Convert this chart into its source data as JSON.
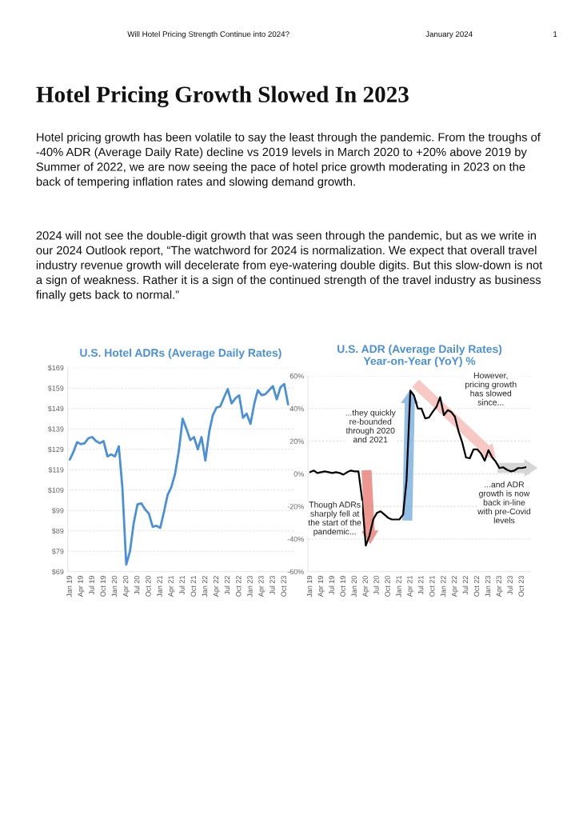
{
  "chart_data": [
    {
      "type": "line",
      "title": "U.S. Hotel ADRs (Average Daily Rates)",
      "annotations": [
        "Will Hotel Pricing Strength Continue into 2024?",
        "January 2024",
        "1",
        "Hotel Pricing Growth Slowed In 2023",
        "Hotel pricing growth has been volatile to say the least through the pandemic. From the troughs of -40% ADR (Average Daily Rate) decline vs 2019 levels in March 2020 to +20% above 2019 by Summer of 2022, we are now seeing the pace of hotel price growth moderating in 2023 on the back of tempering inflation rates and slowing demand growth.",
        "2024 will not see the double-digit growth that was seen through the pandemic, but as we write in our 2024 Outlook report, “The watchword for 2024 is normalization. We expect that overall travel industry revenue growth will decelerate from eye-watering double digits. But this slow-down is not a sign of weakness. Rather it is a sign of the continued strength of the travel industry as business finally gets back to normal.”"
      ],
      "x": [
        "2019-01",
        "2019-02",
        "2019-03",
        "2019-04",
        "2019-05",
        "2019-06",
        "2019-07",
        "2019-08",
        "2019-09",
        "2019-10",
        "2019-11",
        "2019-12",
        "2020-01",
        "2020-02",
        "2020-03",
        "2020-04",
        "2020-05",
        "2020-06",
        "2020-07",
        "2020-08",
        "2020-09",
        "2020-10",
        "2020-11",
        "2020-12",
        "2021-01",
        "2021-02",
        "2021-03",
        "2021-04",
        "2021-05",
        "2021-06",
        "2021-07",
        "2021-08",
        "2021-09",
        "2021-10",
        "2021-11",
        "2021-12",
        "2022-01",
        "2022-02",
        "2022-03",
        "2022-04",
        "2022-05",
        "2022-06",
        "2022-07",
        "2022-08",
        "2022-09",
        "2022-10",
        "2022-11",
        "2022-12",
        "2023-01",
        "2023-02",
        "2023-03",
        "2023-04",
        "2023-05",
        "2023-06",
        "2023-07",
        "2023-08",
        "2023-09",
        "2023-10",
        "2023-11"
      ],
      "series": [
        {
          "color": "#4a90d9",
          "values": [
            124,
            128,
            132.5,
            131.5,
            132,
            134.5,
            135,
            133,
            132,
            133,
            125.5,
            126.5,
            125.5,
            130.5,
            110,
            72.5,
            79,
            93,
            102,
            102.5,
            99.5,
            97.5,
            91,
            91.5,
            90.5,
            98.5,
            106.5,
            110.5,
            117,
            128.5,
            144,
            139,
            133.5,
            135,
            129,
            135,
            123.5,
            137.5,
            145.5,
            149.5,
            150,
            154.5,
            158.5,
            151.5,
            154,
            155.5,
            144.5,
            146.5,
            141.5,
            151.5,
            158,
            155.5,
            156,
            158,
            160,
            153.5,
            159.5,
            161,
            151
          ]
        }
      ],
      "xlim": [
        "2018-12-15",
        "2023-12-15"
      ],
      "xticks": [
        {
          "value": "2019-01",
          "label": "Jan 19"
        },
        {
          "value": "2019-04",
          "label": "Apr 19"
        },
        {
          "value": "2019-07",
          "label": "Jul 19"
        },
        {
          "value": "2019-10",
          "label": "Oct 19"
        },
        {
          "value": "2020-01",
          "label": "Jan 20"
        },
        {
          "value": "2020-04",
          "label": "Apr 20"
        },
        {
          "value": "2020-07",
          "label": "Jul 20"
        },
        {
          "value": "2020-10",
          "label": "Oct 20"
        },
        {
          "value": "2021-01",
          "label": "Jan 21"
        },
        {
          "value": "2021-04",
          "label": "Apr 21"
        },
        {
          "value": "2021-07",
          "label": "Jul 21"
        },
        {
          "value": "2021-10",
          "label": "Oct 21"
        },
        {
          "value": "2022-01",
          "label": "Jan 22"
        },
        {
          "value": "2022-04",
          "label": "Apr 22"
        },
        {
          "value": "2022-07",
          "label": "Jul 22"
        },
        {
          "value": "2022-10",
          "label": "Oct 22"
        },
        {
          "value": "2023-01",
          "label": "Jan 23"
        },
        {
          "value": "2023-04",
          "label": "Apr 23"
        },
        {
          "value": "2023-07",
          "label": "Jul 23"
        },
        {
          "value": "2023-10",
          "label": "Oct 23"
        }
      ],
      "ylim": [
        69,
        169
      ],
      "yticks": [
        {
          "value": 69,
          "label": "$69"
        },
        {
          "value": 79,
          "label": "$79"
        },
        {
          "value": 89,
          "label": "$89"
        },
        {
          "value": 99,
          "label": "$99"
        },
        {
          "value": 109,
          "label": "$109"
        },
        {
          "value": 119,
          "label": "$119"
        },
        {
          "value": 129,
          "label": "$129"
        },
        {
          "value": 139,
          "label": "$139"
        },
        {
          "value": 149,
          "label": "$149"
        },
        {
          "value": 159,
          "label": "$159"
        },
        {
          "value": 169,
          "label": "$169"
        }
      ],
      "grid": "y",
      "legend": false,
      "marker": "none",
      "line_style": "solid"
    },
    {
      "type": "line",
      "title": "U.S. ADR (Average Daily Rates) Year-on-Year (YoY) %",
      "annotations": [
        "Though ADRs sharply fell at the start of the pandemic...",
        "...they quickly re-bounded through 2020 and 2021",
        "However, pricing growth has slowed since...",
        "...and ADR growth is now back in-line with pre-Covid levels"
      ],
      "x": [
        "2019-01",
        "2019-02",
        "2019-03",
        "2019-04",
        "2019-05",
        "2019-06",
        "2019-07",
        "2019-08",
        "2019-09",
        "2019-10",
        "2019-11",
        "2019-12",
        "2020-01",
        "2020-02",
        "2020-03",
        "2020-04",
        "2020-05",
        "2020-06",
        "2020-07",
        "2020-08",
        "2020-09",
        "2020-10",
        "2020-11",
        "2020-12",
        "2021-01",
        "2021-02",
        "2021-03",
        "2021-04",
        "2021-05",
        "2021-06",
        "2021-07",
        "2021-08",
        "2021-09",
        "2021-10",
        "2021-11",
        "2021-12",
        "2022-01",
        "2022-02",
        "2022-03",
        "2022-04",
        "2022-05",
        "2022-06",
        "2022-07",
        "2022-08",
        "2022-09",
        "2022-10",
        "2022-11",
        "2022-12",
        "2023-01",
        "2023-02",
        "2023-03",
        "2023-04",
        "2023-05",
        "2023-06",
        "2023-07",
        "2023-08",
        "2023-09",
        "2023-10",
        "2023-11"
      ],
      "series": [
        {
          "color": "#000000",
          "values": [
            1,
            2,
            0.5,
            1,
            1.5,
            1,
            0.5,
            1,
            0.5,
            -0.5,
            1,
            2,
            1.5,
            1.5,
            -15,
            -44,
            -38,
            -28,
            -24,
            -23,
            -25,
            -27,
            -28,
            -28,
            -28,
            -25,
            -4,
            51,
            48,
            40,
            40,
            34,
            34.5,
            38,
            41,
            47,
            36,
            39,
            38,
            35,
            26,
            19,
            10,
            9.5,
            15,
            15,
            12.5,
            8,
            14.5,
            10,
            7.5,
            3.5,
            4,
            2.5,
            1.5,
            2,
            3.5,
            3.5,
            4
          ]
        }
      ],
      "xlim": [
        "2018-12-15",
        "2023-12-15"
      ],
      "xticks": [
        {
          "value": "2019-01",
          "label": "Jan 19"
        },
        {
          "value": "2019-04",
          "label": "Apr 19"
        },
        {
          "value": "2019-07",
          "label": "Jul 19"
        },
        {
          "value": "2019-10",
          "label": "Oct 19"
        },
        {
          "value": "2020-01",
          "label": "Jan 20"
        },
        {
          "value": "2020-04",
          "label": "Apr 20"
        },
        {
          "value": "2020-07",
          "label": "Jul 20"
        },
        {
          "value": "2020-10",
          "label": "Oct 20"
        },
        {
          "value": "2021-01",
          "label": "Jan 21"
        },
        {
          "value": "2021-04",
          "label": "Apr 21"
        },
        {
          "value": "2021-07",
          "label": "Jul 21"
        },
        {
          "value": "2021-10",
          "label": "Oct 21"
        },
        {
          "value": "2022-01",
          "label": "Jan 22"
        },
        {
          "value": "2022-04",
          "label": "Apr 22"
        },
        {
          "value": "2022-07",
          "label": "Jul 22"
        },
        {
          "value": "2022-10",
          "label": "Oct 22"
        },
        {
          "value": "2023-01",
          "label": "Jan 23"
        },
        {
          "value": "2023-04",
          "label": "Apr 23"
        },
        {
          "value": "2023-07",
          "label": "Jul 23"
        },
        {
          "value": "2023-10",
          "label": "Oct 23"
        }
      ],
      "ylim": [
        -60,
        60
      ],
      "yticks": [
        {
          "value": -60,
          "label": "-60%"
        },
        {
          "value": -40,
          "label": "-40%"
        },
        {
          "value": -20,
          "label": "-20%"
        },
        {
          "value": 0,
          "label": "0%"
        },
        {
          "value": 20,
          "label": "20%"
        },
        {
          "value": 40,
          "label": "40%"
        },
        {
          "value": 60,
          "label": "60%"
        }
      ],
      "grid": "y",
      "legend": false,
      "marker": "none",
      "line_style": "solid"
    }
  ]
}
